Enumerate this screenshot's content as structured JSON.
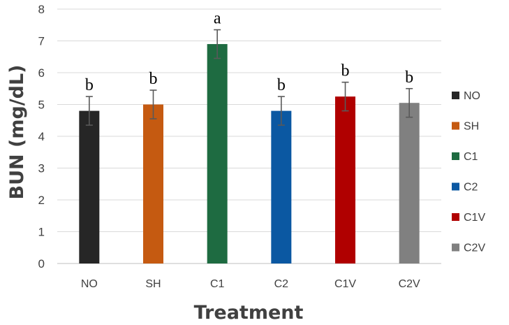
{
  "chart_data": {
    "type": "bar",
    "title": "",
    "xlabel": "Treatment",
    "ylabel": "BUN (mg/dL)",
    "ylim": [
      0,
      8
    ],
    "yticks": [
      0,
      1,
      2,
      3,
      4,
      5,
      6,
      7,
      8
    ],
    "grid": true,
    "legend_position": "right",
    "categories": [
      "NO",
      "SH",
      "C1",
      "C2",
      "C1V",
      "C2V"
    ],
    "values": [
      4.8,
      5.0,
      6.9,
      4.8,
      5.25,
      5.05
    ],
    "errors": [
      0.45,
      0.45,
      0.45,
      0.45,
      0.45,
      0.45
    ],
    "significance": [
      "b",
      "b",
      "a",
      "b",
      "b",
      "b"
    ],
    "colors": [
      "#262626",
      "#c55a11",
      "#1e6b41",
      "#0b58a2",
      "#b00000",
      "#808080"
    ],
    "legend": [
      {
        "label": "NO",
        "color": "#262626"
      },
      {
        "label": "SH",
        "color": "#c55a11"
      },
      {
        "label": "C1",
        "color": "#1e6b41"
      },
      {
        "label": "C2",
        "color": "#0b58a2"
      },
      {
        "label": "C1V",
        "color": "#b00000"
      },
      {
        "label": "C2V",
        "color": "#808080"
      }
    ]
  }
}
